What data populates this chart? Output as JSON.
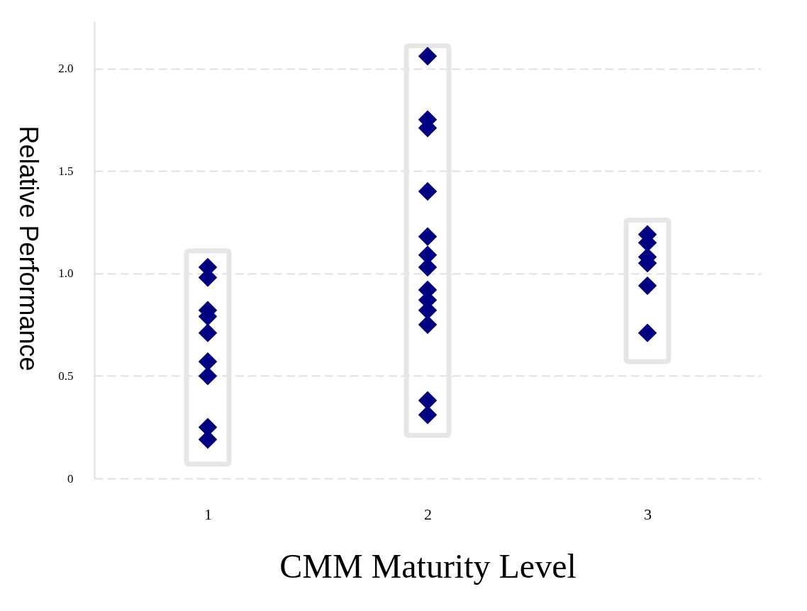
{
  "chart_data": {
    "type": "scatter",
    "xlabel": "CMM Maturity Level",
    "ylabel": "Relative Performance",
    "categories": [
      "1",
      "2",
      "3"
    ],
    "series": [
      {
        "type": "bar",
        "color": "#e6e6e6",
        "base": [
          0.07,
          0.21,
          0.57
        ],
        "values": [
          1.04,
          1.9,
          0.69
        ]
      },
      {
        "type": "scatter",
        "color": "#000080",
        "marker": "diamond",
        "x": [
          "1",
          "1",
          "1",
          "1",
          "1",
          "1",
          "1",
          "1",
          "1",
          "2",
          "2",
          "2",
          "2",
          "2",
          "2",
          "2",
          "2",
          "2",
          "2",
          "2",
          "2",
          "2",
          "3",
          "3",
          "3",
          "3",
          "3",
          "3"
        ],
        "values": [
          1.03,
          0.98,
          0.82,
          0.79,
          0.71,
          0.57,
          0.5,
          0.25,
          0.19,
          2.06,
          1.75,
          1.71,
          1.4,
          1.18,
          1.09,
          1.03,
          0.92,
          0.87,
          0.82,
          0.75,
          0.38,
          0.31,
          1.19,
          1.15,
          1.08,
          1.05,
          0.94,
          0.71
        ]
      }
    ],
    "ylim": [
      0,
      2.23
    ],
    "yticks": [
      0,
      {
        "value": 0.5,
        "label": "0.5"
      },
      {
        "value": 1,
        "label": "1.0"
      },
      {
        "value": 1.5,
        "label": "1.5"
      },
      {
        "value": 2,
        "label": "2.0"
      }
    ],
    "grid": "y",
    "legend": false
  }
}
